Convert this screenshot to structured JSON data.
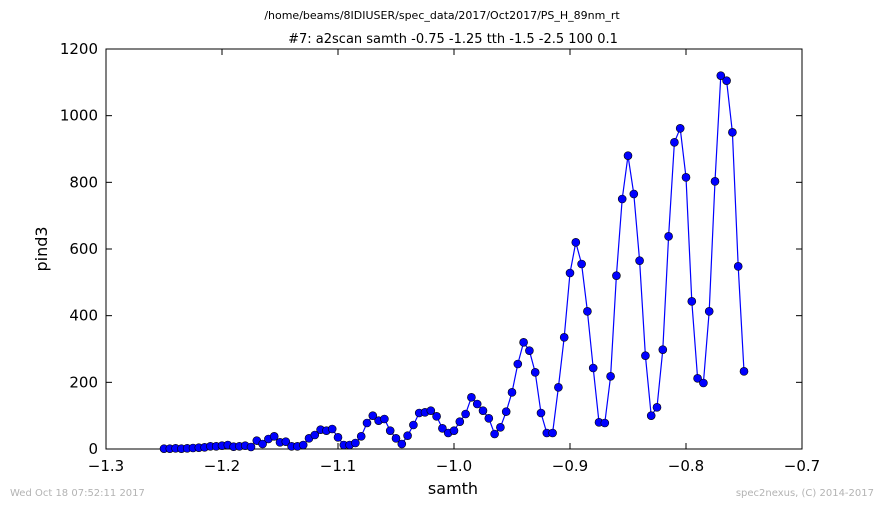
{
  "header": {
    "path_title": "/home/beams/8IDIUSER/spec_data/2017/Oct2017/PS_H_89nm_rt"
  },
  "footer": {
    "timestamp": "Wed Oct 18 07:52:11 2017",
    "credit": "spec2nexus, (C) 2014-2017"
  },
  "chart_data": {
    "type": "line",
    "title": "#7: a2scan  samth -0.75 -1.25  tth -1.5 -2.5  100 0.1",
    "xlabel": "samth",
    "ylabel": "pind3",
    "xlim": [
      -1.3,
      -0.7
    ],
    "ylim": [
      0,
      1200
    ],
    "xticks": [
      -1.3,
      -1.2,
      -1.1,
      -1.0,
      -0.9,
      -0.8,
      -0.7
    ],
    "xtick_labels": [
      "−1.3",
      "−1.2",
      "−1.1",
      "−1.0",
      "−0.9",
      "−0.8",
      "−0.7"
    ],
    "yticks": [
      0,
      200,
      400,
      600,
      800,
      1000,
      1200
    ],
    "ytick_labels": [
      "0",
      "200",
      "400",
      "600",
      "800",
      "1000",
      "1200"
    ],
    "grid": false,
    "colors": {
      "series": "#0000ff",
      "marker_edge": "#000000"
    },
    "series": [
      {
        "marker": "circle",
        "x": [
          -1.25,
          -1.245,
          -1.24,
          -1.235,
          -1.23,
          -1.225,
          -1.22,
          -1.215,
          -1.21,
          -1.205,
          -1.2,
          -1.195,
          -1.19,
          -1.185,
          -1.18,
          -1.175,
          -1.17,
          -1.165,
          -1.16,
          -1.155,
          -1.15,
          -1.145,
          -1.14,
          -1.135,
          -1.13,
          -1.125,
          -1.12,
          -1.115,
          -1.11,
          -1.105,
          -1.1,
          -1.095,
          -1.09,
          -1.085,
          -1.08,
          -1.075,
          -1.07,
          -1.065,
          -1.06,
          -1.055,
          -1.05,
          -1.045,
          -1.04,
          -1.035,
          -1.03,
          -1.025,
          -1.02,
          -1.015,
          -1.01,
          -1.005,
          -1.0,
          -0.995,
          -0.99,
          -0.985,
          -0.98,
          -0.975,
          -0.97,
          -0.965,
          -0.96,
          -0.955,
          -0.95,
          -0.945,
          -0.94,
          -0.935,
          -0.93,
          -0.925,
          -0.92,
          -0.915,
          -0.91,
          -0.905,
          -0.9,
          -0.895,
          -0.89,
          -0.885,
          -0.88,
          -0.875,
          -0.87,
          -0.865,
          -0.86,
          -0.855,
          -0.85,
          -0.845,
          -0.84,
          -0.835,
          -0.83,
          -0.825,
          -0.82,
          -0.815,
          -0.81,
          -0.805,
          -0.8,
          -0.795,
          -0.79,
          -0.785,
          -0.78,
          -0.775,
          -0.77,
          -0.765,
          -0.76,
          -0.755,
          -0.75
        ],
        "y": [
          1,
          1,
          2,
          1,
          2,
          3,
          4,
          5,
          8,
          8,
          10,
          12,
          7,
          8,
          10,
          6,
          25,
          15,
          30,
          38,
          20,
          22,
          8,
          8,
          12,
          32,
          42,
          58,
          55,
          60,
          35,
          12,
          12,
          18,
          38,
          78,
          100,
          85,
          90,
          55,
          32,
          15,
          40,
          72,
          108,
          110,
          115,
          98,
          62,
          48,
          55,
          82,
          105,
          155,
          135,
          115,
          92,
          45,
          65,
          112,
          170,
          255,
          320,
          295,
          230,
          108,
          48,
          48,
          185,
          335,
          528,
          620,
          555,
          413,
          243,
          80,
          78,
          218,
          520,
          750,
          880,
          765,
          565,
          280,
          100,
          125,
          298,
          638,
          920,
          962,
          815,
          443,
          212,
          198,
          413,
          803,
          1120,
          1105,
          950,
          548,
          233
        ]
      }
    ]
  }
}
